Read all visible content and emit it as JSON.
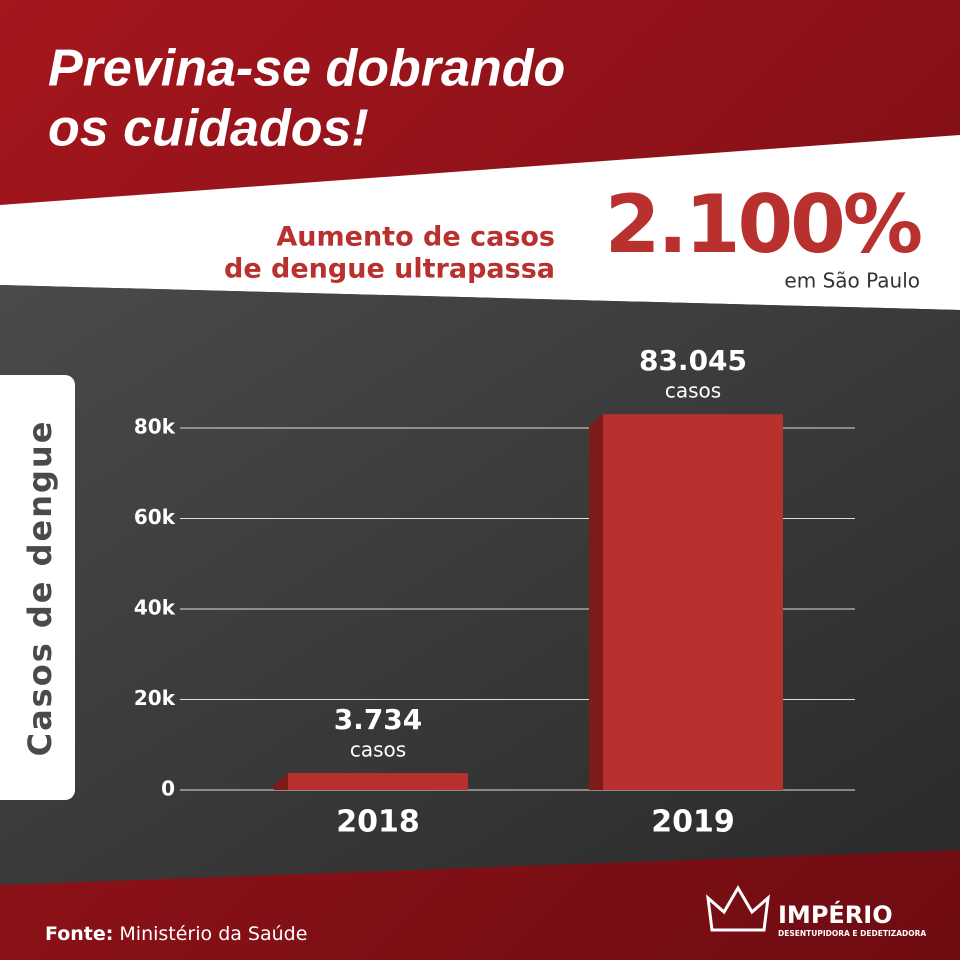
{
  "header": {
    "title_lines": [
      "Previna-se dobrando",
      "os cuidados!"
    ]
  },
  "highlight": {
    "text_lines": [
      "Aumento de casos",
      "de dengue ultrapassa"
    ],
    "figure": "2.100%",
    "place": "em São Paulo"
  },
  "chart_data": {
    "type": "bar",
    "y_label": "Casos de dengue",
    "categories": [
      "2018",
      "2019"
    ],
    "values": [
      3734,
      83045
    ],
    "value_labels": [
      "3.734",
      "83.045"
    ],
    "value_unit": "casos",
    "color": "#b8312f",
    "ylim": [
      0,
      85000
    ],
    "yticks": [
      0,
      {
        "value": 20000,
        "label": "20k"
      },
      {
        "value": 40000,
        "label": "40k"
      },
      {
        "value": 60000,
        "label": "60k"
      },
      {
        "value": 80000,
        "label": "80k"
      }
    ],
    "grid": true
  },
  "footer": {
    "source_label": "Fonte:",
    "source": "Ministério da Saúde",
    "brand": "IMPÉRIO",
    "brand_tagline": "DESENTUPIDORA E DEDETIZADORA"
  }
}
